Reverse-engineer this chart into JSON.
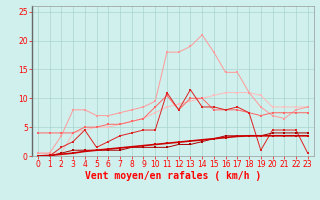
{
  "x": [
    0,
    1,
    2,
    3,
    4,
    5,
    6,
    7,
    8,
    9,
    10,
    11,
    12,
    13,
    14,
    15,
    16,
    17,
    18,
    19,
    20,
    21,
    22,
    23
  ],
  "line_light_pink": [
    0.5,
    0.5,
    0.5,
    4.0,
    4.5,
    5.0,
    5.0,
    5.5,
    6.0,
    6.5,
    7.5,
    8.5,
    9.0,
    9.5,
    10.0,
    10.5,
    11.0,
    11.0,
    11.0,
    10.5,
    8.5,
    8.5,
    8.5,
    8.5
  ],
  "line_pink": [
    0.5,
    0.5,
    3.5,
    8.0,
    8.0,
    7.0,
    7.0,
    7.5,
    8.0,
    8.5,
    9.5,
    18.0,
    18.0,
    19.0,
    21.0,
    18.0,
    14.5,
    14.5,
    11.0,
    8.5,
    7.0,
    6.5,
    8.0,
    8.5
  ],
  "line_medium_red": [
    4.0,
    4.0,
    4.0,
    4.0,
    5.0,
    5.0,
    5.5,
    5.5,
    6.0,
    6.5,
    8.5,
    10.5,
    8.0,
    10.0,
    10.0,
    8.0,
    8.0,
    8.0,
    7.5,
    7.0,
    7.5,
    7.5,
    7.5,
    7.5
  ],
  "line_dark_red1": [
    0.0,
    0.0,
    1.5,
    2.5,
    4.5,
    1.5,
    2.5,
    3.5,
    4.0,
    4.5,
    4.5,
    11.0,
    8.0,
    11.5,
    8.5,
    8.5,
    8.0,
    8.5,
    7.5,
    1.0,
    4.5,
    4.5,
    4.5,
    0.5
  ],
  "line_dark_red2": [
    0.0,
    0.0,
    0.5,
    1.0,
    1.0,
    1.0,
    1.0,
    1.0,
    1.5,
    1.5,
    1.5,
    1.5,
    2.0,
    2.0,
    2.5,
    3.0,
    3.5,
    3.5,
    3.5,
    3.5,
    4.0,
    4.0,
    4.0,
    4.0
  ],
  "line_red_linear": [
    0.0,
    0.1,
    0.3,
    0.5,
    0.8,
    1.0,
    1.2,
    1.4,
    1.6,
    1.8,
    2.0,
    2.2,
    2.4,
    2.6,
    2.8,
    3.0,
    3.2,
    3.4,
    3.5,
    3.5,
    3.5,
    3.5,
    3.5,
    3.5
  ],
  "bg_color": "#cff0ec",
  "grid_color": "#aad4ce",
  "col_light_pink": "#ffbbbb",
  "col_pink": "#ff9999",
  "col_medium_red": "#ff6666",
  "col_dark_red1": "#dd2222",
  "col_dark_red2": "#aa0000",
  "col_red_linear": "#cc0000",
  "xlabel": "Vent moyen/en rafales ( km/h )",
  "xlim": [
    -0.5,
    23.5
  ],
  "ylim": [
    0,
    26
  ],
  "yticks": [
    0,
    5,
    10,
    15,
    20,
    25
  ],
  "xticks": [
    0,
    1,
    2,
    3,
    4,
    5,
    6,
    7,
    8,
    9,
    10,
    11,
    12,
    13,
    14,
    15,
    16,
    17,
    18,
    19,
    20,
    21,
    22,
    23
  ]
}
